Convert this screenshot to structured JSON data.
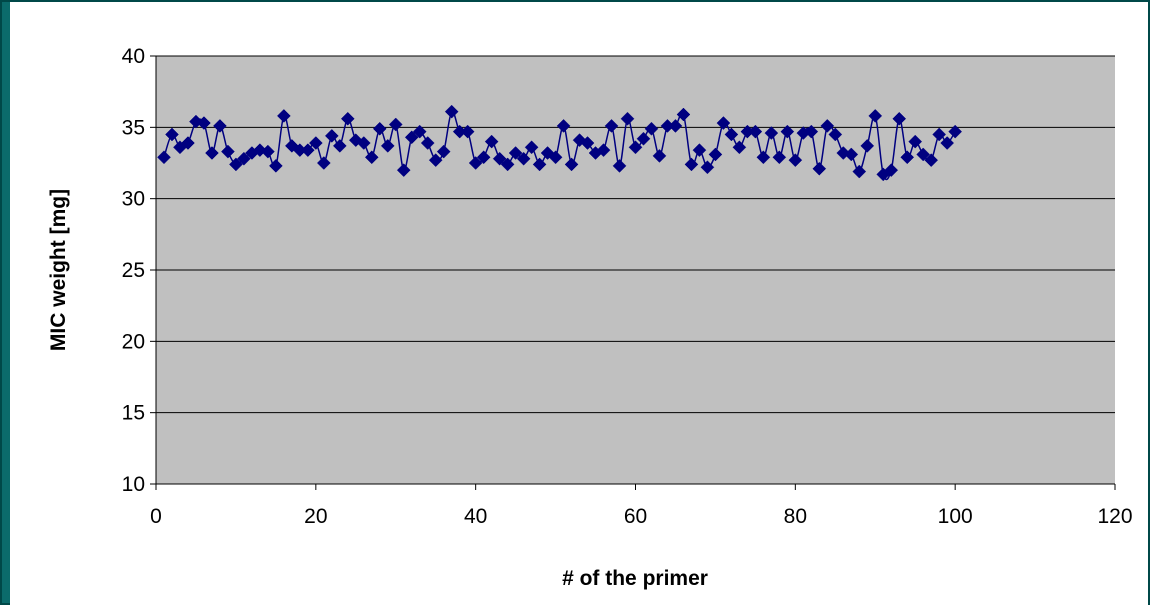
{
  "chart_data": {
    "type": "scatter",
    "title": "",
    "xlabel": "# of the primer",
    "ylabel": "MIC weight [mg]",
    "xlim": [
      0,
      120
    ],
    "ylim": [
      10,
      40
    ],
    "xticks": [
      0,
      20,
      40,
      60,
      80,
      100,
      120
    ],
    "yticks": [
      10,
      15,
      20,
      25,
      30,
      35,
      40
    ],
    "grid": "horizontal",
    "legend": "none",
    "series": [
      {
        "marker": "diamond",
        "line": "smoothed",
        "color": "#000080",
        "x": [
          1,
          2,
          3,
          4,
          5,
          6,
          7,
          8,
          9,
          10,
          11,
          12,
          13,
          14,
          15,
          16,
          17,
          18,
          19,
          20,
          21,
          22,
          23,
          24,
          25,
          26,
          27,
          28,
          29,
          30,
          31,
          32,
          33,
          34,
          35,
          36,
          37,
          38,
          39,
          40,
          41,
          42,
          43,
          44,
          45,
          46,
          47,
          48,
          49,
          50,
          51,
          52,
          53,
          54,
          55,
          56,
          57,
          58,
          59,
          60,
          61,
          62,
          63,
          64,
          65,
          66,
          67,
          68,
          69,
          70,
          71,
          72,
          73,
          74,
          75,
          76,
          77,
          78,
          79,
          80,
          81,
          82,
          83,
          84,
          85,
          86,
          87,
          88,
          89,
          90,
          91,
          92,
          93,
          94,
          95,
          96,
          97,
          98,
          99,
          100
        ],
        "y": [
          32.9,
          34.5,
          33.6,
          33.9,
          35.4,
          35.3,
          33.2,
          35.1,
          33.3,
          32.4,
          32.8,
          33.2,
          33.4,
          33.3,
          32.3,
          35.8,
          33.7,
          33.4,
          33.4,
          33.9,
          32.5,
          34.4,
          33.7,
          35.6,
          34.1,
          33.9,
          32.9,
          34.9,
          33.7,
          35.2,
          32.0,
          34.3,
          34.7,
          33.9,
          32.7,
          33.3,
          36.1,
          34.7,
          34.7,
          32.5,
          32.9,
          34.0,
          32.8,
          32.4,
          33.2,
          32.8,
          33.6,
          32.4,
          33.2,
          32.9,
          35.1,
          32.4,
          34.1,
          33.9,
          33.2,
          33.4,
          35.1,
          32.3,
          35.6,
          33.6,
          34.2,
          34.9,
          33.0,
          35.1,
          35.1,
          35.9,
          32.4,
          33.4,
          32.2,
          33.1,
          35.3,
          34.5,
          33.6,
          34.7,
          34.7,
          32.9,
          34.6,
          32.9,
          34.7,
          32.7,
          34.6,
          34.7,
          32.1,
          35.1,
          34.5,
          33.2,
          33.1,
          31.9,
          33.7,
          35.8,
          31.7,
          32.0,
          35.6,
          32.9,
          34.0,
          33.1,
          32.7,
          34.5,
          33.9,
          34.7
        ]
      }
    ]
  }
}
